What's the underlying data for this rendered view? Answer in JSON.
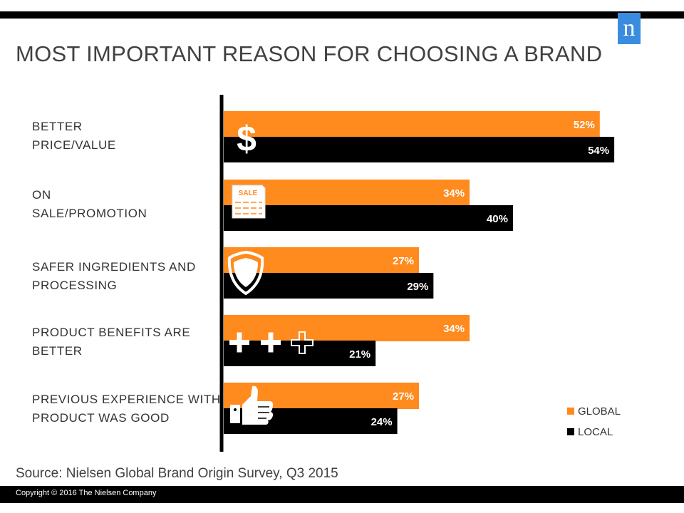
{
  "header": {
    "title": "MOST IMPORTANT REASON FOR CHOOSING A BRAND",
    "logo_text": "n"
  },
  "colors": {
    "global": "#FF8A1E",
    "local": "#000000",
    "logo": "#3a8dde"
  },
  "chart_data": {
    "type": "bar",
    "orientation": "horizontal",
    "title": "MOST IMPORTANT REASON FOR CHOOSING A BRAND",
    "categories": [
      "BETTER\nPRICE/VALUE",
      "ON\nSALE/PROMOTION",
      "SAFER INGREDIENTS AND\nPROCESSING",
      "PRODUCT BENEFITS ARE\nBETTER",
      "PREVIOUS EXPERIENCE WITH\nPRODUCT WAS GOOD"
    ],
    "category_icons": [
      "dollar-icon",
      "sale-tag-icon",
      "shield-icon",
      "plus-icons",
      "thumbs-up-icon"
    ],
    "series": [
      {
        "name": "GLOBAL",
        "values": [
          52,
          34,
          27,
          34,
          27
        ],
        "labels": [
          "52%",
          "34%",
          "27%",
          "34%",
          "27%"
        ]
      },
      {
        "name": "LOCAL",
        "values": [
          54,
          40,
          29,
          21,
          24
        ],
        "labels": [
          "54%",
          "40%",
          "29%",
          "21%",
          "24%"
        ]
      }
    ],
    "legend_position": "bottom-right",
    "grid": false
  },
  "legend": {
    "global": "GLOBAL",
    "local": "LOCAL"
  },
  "source": "Source:  Nielsen Global Brand Origin Survey, Q3 2015",
  "footer": {
    "copyright": "Copyright © 2016 The Nielsen Company"
  }
}
